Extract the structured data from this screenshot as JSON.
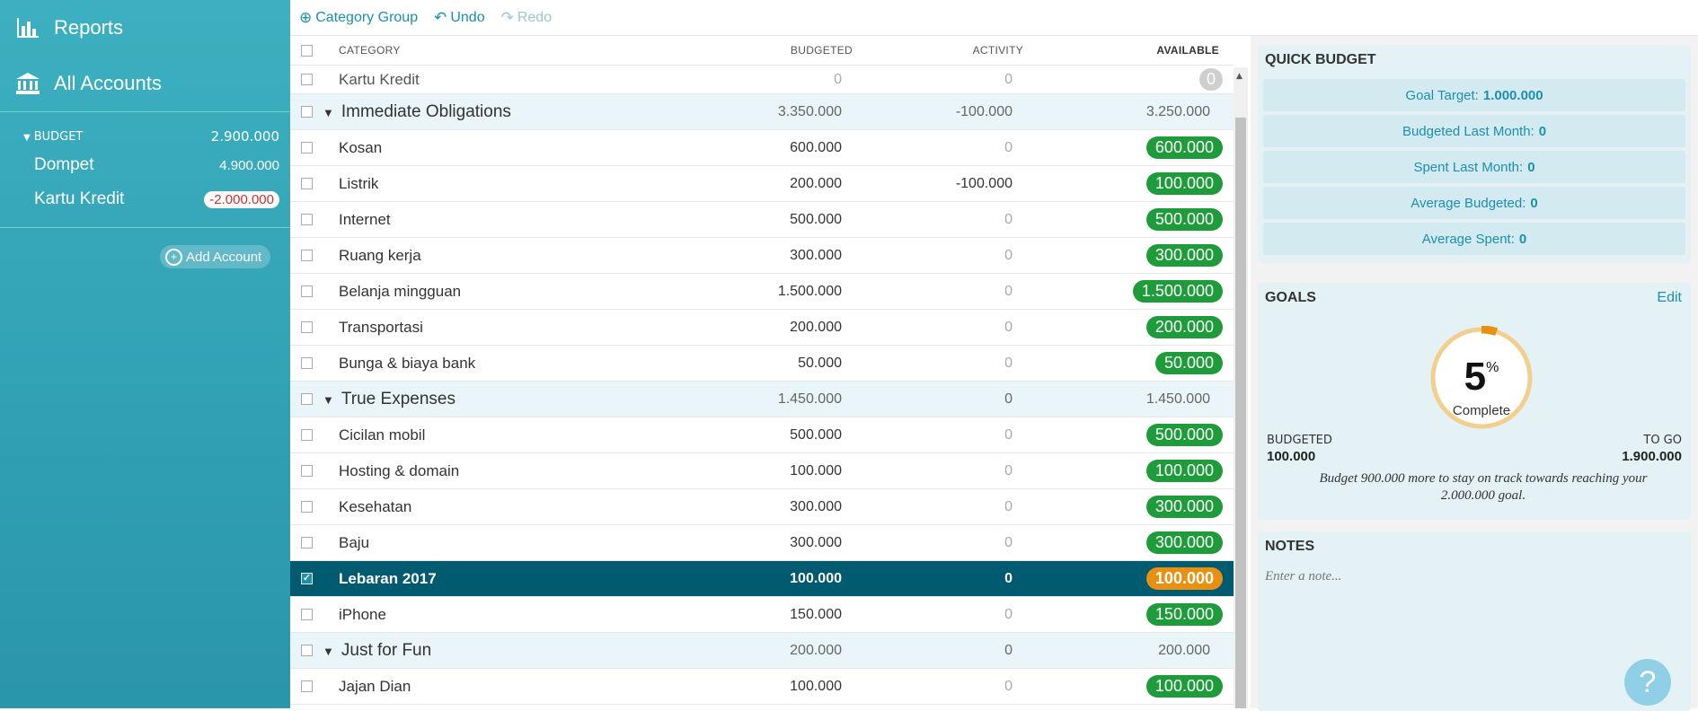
{
  "sidebar": {
    "nav": [
      {
        "label": "Reports",
        "icon": "bar-chart-icon"
      },
      {
        "label": "All Accounts",
        "icon": "bank-icon"
      }
    ],
    "budget_label": "BUDGET",
    "budget_total": "2.900.000",
    "accounts": [
      {
        "name": "Dompet",
        "amount": "4.900.000"
      },
      {
        "name": "Kartu Kredit",
        "amount": "-2.000.000"
      }
    ],
    "add_account_label": "Add Account"
  },
  "toolbar": {
    "category_group_label": "Category Group",
    "undo_label": "Undo",
    "redo_label": "Redo"
  },
  "table": {
    "headers": {
      "category": "CATEGORY",
      "budgeted": "BUDGETED",
      "activity": "ACTIVITY",
      "available": "AVAILABLE"
    }
  },
  "inspector": {
    "quick_budget_title": "QUICK BUDGET",
    "quick_budget": [
      {
        "label": "Goal Target:",
        "value": "1.000.000"
      },
      {
        "label": "Budgeted Last Month:",
        "value": "0"
      },
      {
        "label": "Spent Last Month:",
        "value": "0"
      },
      {
        "label": "Average Budgeted:",
        "value": "0"
      },
      {
        "label": "Average Spent:",
        "value": "0"
      }
    ],
    "goals_title": "GOALS",
    "goals_edit": "Edit",
    "goal_percent_number": "5",
    "goal_percent_sign": "%",
    "goal_progress": 0.05,
    "goal_complete_label": "Complete",
    "budgeted_label": "BUDGETED",
    "budgeted_value": "100.000",
    "to_go_label": "TO GO",
    "to_go_value": "1.900.000",
    "goal_message": "Budget 900.000 more to stay on track towards reaching your 2.000.000 goal.",
    "notes_title": "NOTES",
    "notes_placeholder": "Enter a note..."
  },
  "help_label": "?",
  "colors": {
    "sidebar": "#3cb0c0",
    "accent": "#1a8fb0",
    "positive_pill": "#1e9c3a",
    "warning_pill": "#e8900f",
    "selected_row": "#005a70"
  }
}
